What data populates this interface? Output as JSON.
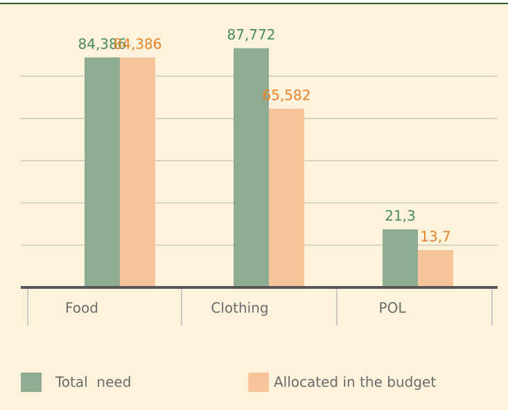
{
  "chart_data": {
    "type": "bar",
    "categories": [
      "Food",
      "Clothing",
      "POL"
    ],
    "series": [
      {
        "name": "Total  need",
        "color": "#8fab92",
        "label_color": "#4a8a55",
        "values": [
          84.386,
          87.772,
          21.3
        ],
        "value_labels": [
          "84,386",
          "87,772",
          "21,3"
        ]
      },
      {
        "name": "Allocated in the budget",
        "color": "#f7c398",
        "label_color": "#e8822a",
        "values": [
          84.386,
          65.582,
          13.7
        ],
        "value_labels": [
          "84,386",
          "65,582",
          "13,7"
        ]
      }
    ],
    "ylim": [
      0,
      93
    ],
    "yticks": [
      0,
      15.5,
      31,
      46.5,
      62,
      77.5
    ],
    "grid": true
  }
}
